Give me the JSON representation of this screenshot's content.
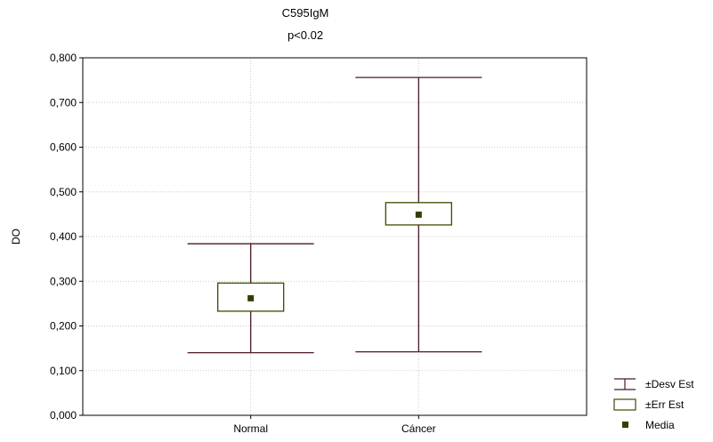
{
  "chart_data": {
    "type": "box",
    "title": "C595IgM",
    "subtitle": "p<0.02",
    "xlabel": "",
    "ylabel": "DO",
    "ylim": [
      0,
      0.8
    ],
    "y_ticks": [
      "0,000",
      "0,100",
      "0,200",
      "0,300",
      "0,400",
      "0,500",
      "0,600",
      "0,700",
      "0,800"
    ],
    "categories": [
      "Normal",
      "Cáncer"
    ],
    "series": [
      {
        "category": "Normal",
        "mean": 0.262,
        "se_low": 0.233,
        "se_high": 0.296,
        "sd_low": 0.14,
        "sd_high": 0.384
      },
      {
        "category": "Cáncer",
        "mean": 0.449,
        "se_low": 0.426,
        "se_high": 0.476,
        "sd_low": 0.142,
        "sd_high": 0.756
      }
    ],
    "grid": true,
    "legend": {
      "position": "bottom-right",
      "items": [
        {
          "label": "±Desv Est",
          "symbol": "whisker"
        },
        {
          "label": "±Err Est",
          "symbol": "box"
        },
        {
          "label": "Media",
          "symbol": "square"
        }
      ]
    },
    "colors": {
      "whisker": "#4a1a22",
      "box_stroke": "#3f4a00",
      "mean_marker": "#3b3b00",
      "grid": "#c8c8c8"
    }
  }
}
